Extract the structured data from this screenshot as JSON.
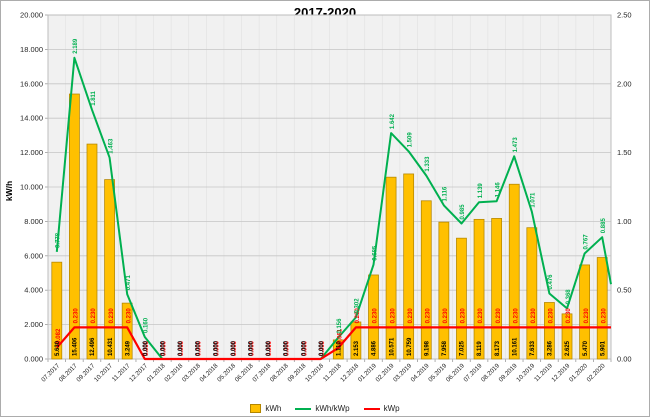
{
  "title": "2017-2020",
  "y_axis_title": "kW/h",
  "colors": {
    "bar": "#FFC000",
    "bar_border": "#B38600",
    "line_green": "#00B050",
    "line_red": "#FF0000",
    "grid_h": "#C6C6C6",
    "grid_v": "#E3E3E3",
    "plot_bg": "#F1F1F1",
    "plot_border": "#BDBDBD",
    "axis_text": "#262626",
    "bar_label": "#000000"
  },
  "legend": [
    {
      "label": "kWh",
      "swatch": "bar"
    },
    {
      "label": "kWh/kWp",
      "swatch": "line-green"
    },
    {
      "label": "kWp",
      "swatch": "line-red"
    }
  ],
  "chart_data": {
    "type": "bar",
    "subtype": "combo-bar-line",
    "title": "2017-2020",
    "xlabel": "",
    "ylabel": "kW/h",
    "grid": true,
    "legend_position": "bottom",
    "left_axis": {
      "min": 0,
      "max": 20,
      "step": 2,
      "tick_labels": [
        "0.000",
        "2.000",
        "4.000",
        "6.000",
        "8.000",
        "10.000",
        "12.000",
        "14.000",
        "16.000",
        "18.000",
        "20.000"
      ]
    },
    "right_axis": {
      "min": 0,
      "max": 2.5,
      "step": 0.5,
      "tick_labels": [
        "0.00",
        "0.50",
        "1.00",
        "1.50",
        "2.00",
        "2.50"
      ]
    },
    "categories": [
      "07.2017",
      "08.2017",
      "09.2017",
      "10.2017",
      "11.2017",
      "12.2017",
      "01.2018",
      "02.2018",
      "03.2018",
      "04.2018",
      "05.2018",
      "06.2018",
      "07.2018",
      "08.2018",
      "09.2018",
      "10.2018",
      "11.2018",
      "12.2018",
      "01.2019",
      "02.2019",
      "03.2019",
      "04.2019",
      "05.2019",
      "06.2019",
      "07.2019",
      "08.2019",
      "09.2019",
      "10.2019",
      "11.2019",
      "12.2019",
      "01.2020",
      "02.2020"
    ],
    "series": [
      {
        "name": "kWh",
        "type": "bar",
        "axis": "left",
        "values": [
          5.63,
          15.406,
          12.496,
          10.431,
          3.249,
          0,
          0,
          0,
          0,
          0,
          0,
          0,
          0,
          0,
          0,
          0,
          1.11,
          2.153,
          4.886,
          10.571,
          10.759,
          9.198,
          7.958,
          7.025,
          8.119,
          8.173,
          10.161,
          7.633,
          3.286,
          2.625,
          5.47,
          5.901
        ],
        "labels": [
          "5.630",
          "15.406",
          "12.496",
          "10.431",
          "3.249",
          "0.000",
          "0.000",
          "0.000",
          "0.000",
          "0.000",
          "0.000",
          "0.000",
          "0.000",
          "0.000",
          "0.000",
          "0.000",
          "1.110",
          "2.153",
          "4.886",
          "10.571",
          "10.759",
          "9.198",
          "7.958",
          "7.025",
          "8.119",
          "8.173",
          "10.161",
          "7.633",
          "3.286",
          "2.625",
          "5.470",
          "5.901"
        ]
      },
      {
        "name": "kWh/kWp",
        "type": "line",
        "axis": "right",
        "values": [
          0.778,
          2.189,
          1.811,
          1.463,
          0.471,
          0.16,
          0,
          0,
          0,
          0,
          0,
          0,
          0,
          0,
          0,
          0,
          0.156,
          0.302,
          0.685,
          1.642,
          1.509,
          1.333,
          1.116,
          0.985,
          1.139,
          1.146,
          1.473,
          1.071,
          0.476,
          0.368,
          0.767,
          0.885
        ],
        "labels": [
          "0.778",
          "2.189",
          "1.811",
          "1.463",
          "0.471",
          "0.160",
          "",
          "",
          "",
          "",
          "",
          "",
          "",
          "",
          "",
          "",
          "0.156",
          "0.302",
          "0.685",
          "1.642",
          "1.509",
          "1.333",
          "1.116",
          "0.985",
          "1.139",
          "1.146",
          "1.473",
          "1.071",
          "0.476",
          "0.368",
          "0.767",
          "0.885"
        ]
      },
      {
        "name": "kWp",
        "type": "line",
        "axis": "right",
        "values": [
          0.082,
          0.23,
          0.23,
          0.23,
          0.23,
          0,
          0,
          0,
          0,
          0,
          0,
          0,
          0,
          0,
          0,
          0,
          0.081,
          0.23,
          0.23,
          0.23,
          0.23,
          0.23,
          0.23,
          0.23,
          0.23,
          0.23,
          0.23,
          0.23,
          0.23,
          0.23,
          0.23,
          0.23
        ],
        "labels": [
          "0.082",
          "0.230",
          "0.230",
          "0.230",
          "0.230",
          "0.000",
          "0.000",
          "0.000",
          "0.000",
          "0.000",
          "0.000",
          "0.000",
          "0.000",
          "0.000",
          "0.000",
          "0.000",
          "0.081",
          "0.230",
          "0.230",
          "0.230",
          "0.230",
          "0.230",
          "0.230",
          "0.230",
          "0.230",
          "0.230",
          "0.230",
          "0.230",
          "0.230",
          "0.230",
          "0.230",
          "0.230"
        ]
      }
    ]
  }
}
